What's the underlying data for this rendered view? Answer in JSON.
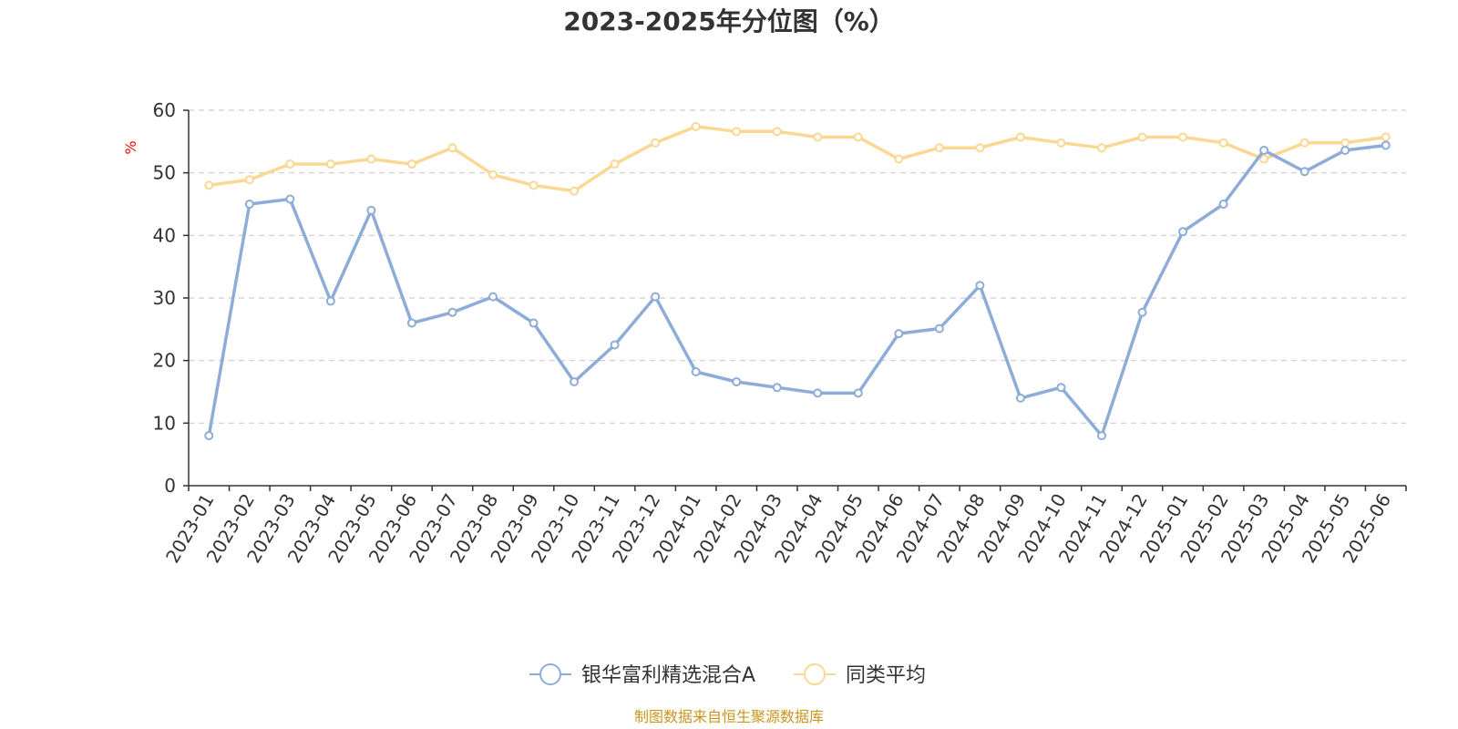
{
  "chart_data": {
    "type": "line",
    "title": "2023-2025年分位图（%）",
    "ylabel": "%",
    "xlabel": "",
    "ylim": [
      0,
      60
    ],
    "yticks": [
      0,
      10,
      20,
      30,
      40,
      50,
      60
    ],
    "grid": true,
    "legend_position": "bottom",
    "categories": [
      "2023-01",
      "2023-02",
      "2023-03",
      "2023-04",
      "2023-05",
      "2023-06",
      "2023-07",
      "2023-08",
      "2023-09",
      "2023-10",
      "2023-11",
      "2023-12",
      "2024-01",
      "2024-02",
      "2024-03",
      "2024-04",
      "2024-05",
      "2024-06",
      "2024-07",
      "2024-08",
      "2024-09",
      "2024-10",
      "2024-11",
      "2024-12",
      "2025-01",
      "2025-02",
      "2025-03",
      "2025-04",
      "2025-05",
      "2025-06"
    ],
    "series": [
      {
        "name": "银华富利精选混合A",
        "color": "#8eacd8",
        "values": [
          8.0,
          45.0,
          45.8,
          29.5,
          44.0,
          26.0,
          27.7,
          30.2,
          26.0,
          16.6,
          22.5,
          30.2,
          18.2,
          16.6,
          15.7,
          14.8,
          14.8,
          24.3,
          25.1,
          32.0,
          14.0,
          15.7,
          8.0,
          27.7,
          40.6,
          45.0,
          53.6,
          50.2,
          53.6,
          54.4
        ]
      },
      {
        "name": "同类平均",
        "color": "#fad893",
        "values": [
          48.0,
          48.9,
          51.4,
          51.4,
          52.2,
          51.4,
          54.0,
          49.7,
          48.0,
          47.1,
          51.4,
          54.8,
          57.4,
          56.6,
          56.6,
          55.7,
          55.7,
          52.2,
          54.0,
          54.0,
          55.7,
          54.8,
          54.0,
          55.7,
          55.7,
          54.8,
          52.2,
          54.8,
          54.8,
          55.7
        ]
      }
    ],
    "source": "制图数据来自恒生聚源数据库",
    "colors": {
      "text": "#333333",
      "grid": "#cccccc",
      "axis": "#333333",
      "unit": "#ff0000",
      "source": "#c9961e"
    }
  }
}
